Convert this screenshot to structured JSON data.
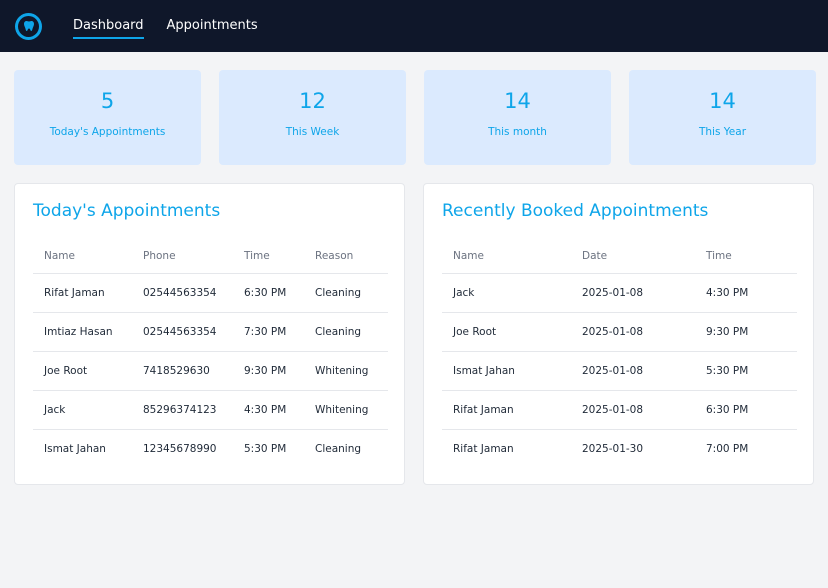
{
  "colors": {
    "accent": "#0ea5e9",
    "nav_bg": "#0f172a",
    "card_bg": "#dbeafe"
  },
  "nav": {
    "logo_icon": "tooth-icon",
    "links": [
      {
        "label": "Dashboard",
        "active": true
      },
      {
        "label": "Appointments",
        "active": false
      }
    ]
  },
  "stats": [
    {
      "value": "5",
      "label": "Today's Appointments"
    },
    {
      "value": "12",
      "label": "This Week"
    },
    {
      "value": "14",
      "label": "This month"
    },
    {
      "value": "14",
      "label": "This Year"
    }
  ],
  "today": {
    "title": "Today's Appointments",
    "columns": [
      "Name",
      "Phone",
      "Time",
      "Reason"
    ],
    "rows": [
      [
        "Rifat Jaman",
        "02544563354",
        "6:30 PM",
        "Cleaning"
      ],
      [
        "Imtiaz Hasan",
        "02544563354",
        "7:30 PM",
        "Cleaning"
      ],
      [
        "Joe Root",
        "7418529630",
        "9:30 PM",
        "Whitening"
      ],
      [
        "Jack",
        "85296374123",
        "4:30 PM",
        "Whitening"
      ],
      [
        "Ismat Jahan",
        "12345678990",
        "5:30 PM",
        "Cleaning"
      ]
    ]
  },
  "recent": {
    "title": "Recently Booked Appointments",
    "columns": [
      "Name",
      "Date",
      "Time"
    ],
    "rows": [
      [
        "Jack",
        "2025-01-08",
        "4:30 PM"
      ],
      [
        "Joe Root",
        "2025-01-08",
        "9:30 PM"
      ],
      [
        "Ismat Jahan",
        "2025-01-08",
        "5:30 PM"
      ],
      [
        "Rifat Jaman",
        "2025-01-08",
        "6:30 PM"
      ],
      [
        "Rifat Jaman",
        "2025-01-30",
        "7:00 PM"
      ]
    ]
  }
}
